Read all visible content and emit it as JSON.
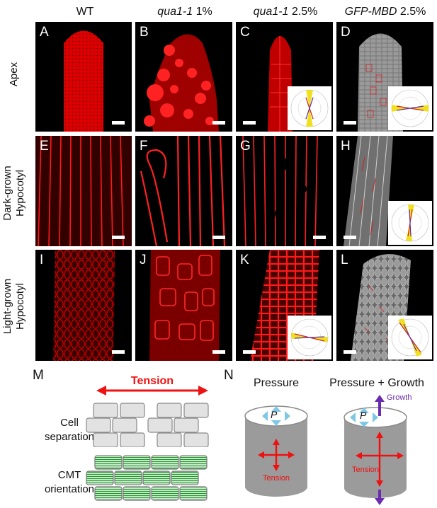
{
  "columns": [
    {
      "label": "WT",
      "italic": false,
      "suffix": ""
    },
    {
      "label": "qua1-1",
      "italic": true,
      "suffix": " 1%"
    },
    {
      "label": "qua1-1",
      "italic": true,
      "suffix": " 2.5%"
    },
    {
      "label": "GFP-MBD",
      "italic": true,
      "suffix": " 2.5%"
    }
  ],
  "rows": [
    {
      "lines": [
        "Apex"
      ]
    },
    {
      "lines": [
        "Dark-grown",
        "Hypocotyl"
      ]
    },
    {
      "lines": [
        "Light-grown",
        "Hypocotyl"
      ]
    }
  ],
  "panels": [
    "A",
    "B",
    "C",
    "D",
    "E",
    "F",
    "G",
    "H",
    "I",
    "J",
    "K",
    "L"
  ],
  "panel_M": {
    "letter": "M",
    "tension_label": "Tension",
    "row1_label": [
      "Cell",
      "separation"
    ],
    "row2_label": [
      "CMT",
      "orientation"
    ]
  },
  "panel_N": {
    "letter": "N",
    "left_title": "Pressure",
    "right_title": "Pressure + Growth",
    "pressure_symbol": "P",
    "left_tension": "Tension",
    "right_tension": "Tension",
    "growth_label": "Growth"
  },
  "colors": {
    "stain_red": "#e00000",
    "arrow_red": "#ee1111",
    "arrow_blue": "#7ec8e3",
    "growth_purple": "#6a2bb0",
    "cell_gray": "#e2e2e2",
    "cmt_green": "#1f9a2a",
    "cylinder_gray": "#9b9b9b"
  }
}
